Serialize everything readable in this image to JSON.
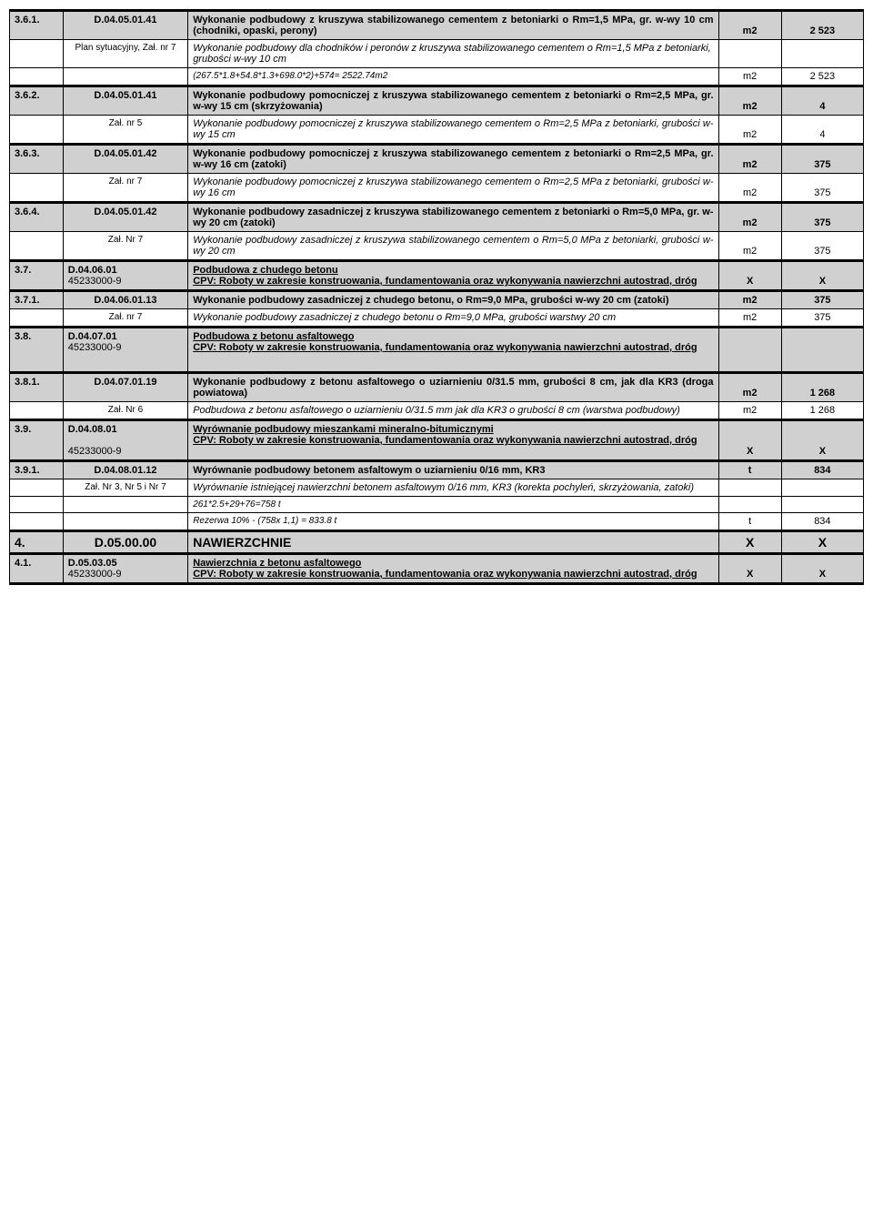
{
  "rows": [
    {
      "num": "3.6.1.",
      "code": "D.04.05.01.41",
      "desc": "Wykonanie podbudowy z kruszywa stabilizowanego cementem z betoniarki o Rm=1,5 MPa, gr. w-wy 10 cm (chodniki, opaski, perony)",
      "unit": "m2",
      "qty": "2 523",
      "gray": true,
      "bold": true,
      "thick": true,
      "justify": true,
      "uUnderline": true
    },
    {
      "num": "",
      "code": "Plan sytuacyjny, Zał. nr 7",
      "desc": "Wykonanie podbudowy dla chodników i peronów z kruszywa stabilizowanego cementem o Rm=1,5 MPa z betoniarki, grubości w-wy 10 cm",
      "unit": "",
      "qty": "",
      "gray": false,
      "italic": true,
      "codeSmall": true
    },
    {
      "num": "",
      "code": "",
      "desc": "(267.5*1.8+54.8*1.3+698.0*2)+574= 2522.74m2",
      "unit": "m2",
      "qty": "2 523",
      "gray": false,
      "italic": true,
      "small": true,
      "thickBottom": true
    },
    {
      "num": "3.6.2.",
      "code": "D.04.05.01.41",
      "desc": "Wykonanie podbudowy pomocniczej z kruszywa stabilizowanego cementem z betoniarki o Rm=2,5 MPa, gr. w-wy 15 cm (skrzyżowania)",
      "unit": "m2",
      "qty": "4",
      "gray": true,
      "bold": true,
      "justify": true,
      "uUnderline": true
    },
    {
      "num": "",
      "code": "Zał. nr 5",
      "desc": "Wykonanie podbudowy pomocniczej z kruszywa stabilizowanego cementem o Rm=2,5 MPa z betoniarki, grubości w-wy 15 cm",
      "unit": "m2",
      "qty": "4",
      "gray": false,
      "italic": true,
      "codeSmall": true,
      "justify": true,
      "thickBottom": true
    },
    {
      "num": "3.6.3.",
      "code": "D.04.05.01.42",
      "desc": "Wykonanie podbudowy pomocniczej z kruszywa stabilizowanego cementem z betoniarki o Rm=2,5 MPa, gr. w-wy 16 cm (zatoki)",
      "unit": "m2",
      "qty": "375",
      "gray": true,
      "bold": true,
      "justify": true,
      "uUnderline": true
    },
    {
      "num": "",
      "code": "Zał. nr 7",
      "desc": "Wykonanie podbudowy pomocniczej z kruszywa stabilizowanego cementem o Rm=2,5 MPa z betoniarki, grubości w-wy 16 cm",
      "unit": "m2",
      "qty": "375",
      "gray": false,
      "italic": true,
      "codeSmall": true,
      "justify": true,
      "thickBottom": true
    },
    {
      "num": "3.6.4.",
      "code": "D.04.05.01.42",
      "desc": "Wykonanie podbudowy zasadniczej z kruszywa stabilizowanego cementem z betoniarki o Rm=5,0 MPa, gr. w-wy 20 cm (zatoki)",
      "unit": "m2",
      "qty": "375",
      "gray": true,
      "bold": true,
      "justify": true,
      "uUnderline": true
    },
    {
      "num": "",
      "code": "Zał. Nr 7",
      "desc": "Wykonanie podbudowy zasadniczej z kruszywa stabilizowanego cementem o Rm=5,0 MPa z betoniarki, grubości w-wy 20 cm",
      "unit": "m2",
      "qty": "375",
      "gray": false,
      "italic": true,
      "codeSmall": true,
      "justify": true,
      "thickBottom": true
    },
    {
      "num": "3.7.",
      "code": "D.04.06.01\n45233000-9",
      "desc": "Podbudowa z chudego betonu\nCPV: Roboty w zakresie konstruowania, fundamentowania oraz wykonywania nawierzchni autostrad, dróg",
      "unit": "X",
      "qty": "X",
      "gray": true,
      "bold": true,
      "underline": true,
      "thickTop": true,
      "thickBottom": true,
      "multiCode": true
    },
    {
      "num": "3.7.1.",
      "code": "D.04.06.01.13",
      "desc": "Wykonanie podbudowy zasadniczej z chudego betonu, o Rm=9,0 MPa, grubości w-wy 20 cm (zatoki)",
      "unit": "m2",
      "qty": "375",
      "gray": true,
      "bold": true,
      "uUnderline": true
    },
    {
      "num": "",
      "code": "Zał. nr 7",
      "desc": "Wykonanie podbudowy zasadniczej z chudego betonu o Rm=9,0 MPa, grubości warstwy 20 cm",
      "unit": "m2",
      "qty": "375",
      "gray": false,
      "italic": true,
      "codeSmall": true,
      "thickBottom": true
    },
    {
      "num": "3.8.",
      "code": "D.04.07.01\n45233000-9",
      "desc": "Podbudowa z betonu asfaltowego\nCPV: Roboty w zakresie konstruowania, fundamentowania oraz wykonywania nawierzchni autostrad, dróg",
      "unit": "",
      "qty": "",
      "gray": true,
      "bold": true,
      "underline": true,
      "thickTop": true,
      "thickBottom": true,
      "multiCode": true,
      "extraPad": true
    },
    {
      "num": "3.8.1.",
      "code": "D.04.07.01.19",
      "desc": "Wykonanie podbudowy z betonu asfaltowego o uziarnieniu 0/31.5 mm,  grubości 8 cm, jak dla KR3 (droga powiatowa)",
      "unit": "m2",
      "qty": "1 268",
      "gray": true,
      "bold": true,
      "justify": true,
      "thickTop": true
    },
    {
      "num": "",
      "code": "Zał. Nr 6",
      "desc": "Podbudowa z betonu asfaltowego o uziarnieniu 0/31.5 mm jak dla KR3 o grubości 8 cm (warstwa podbudowy)",
      "unit": "m2",
      "qty": "1 268",
      "gray": false,
      "italic": true,
      "codeSmall": true,
      "thickBottom": true
    },
    {
      "num": "3.9.",
      "code": "D.04.08.01\n\n45233000-9",
      "desc": "Wyrównanie podbudowy mieszankami mineralno-bitumicznymi\nCPV: Roboty w zakresie konstruowania, fundamentowania oraz wykonywania nawierzchni autostrad, dróg",
      "unit": "X",
      "qty": "X",
      "gray": true,
      "bold": true,
      "underline": true,
      "thickTop": true,
      "thickBottom": true,
      "multiCode": true
    },
    {
      "num": "3.9.1.",
      "code": "D.04.08.01.12",
      "desc": "Wyrównanie podbudowy betonem asfaltowym o uziarnieniu 0/16 mm, KR3",
      "unit": "t",
      "qty": "834",
      "gray": true,
      "bold": true,
      "uUnderline": true
    },
    {
      "num": "",
      "code": "Zał. Nr 3, Nr 5 i Nr 7",
      "desc": "Wyrównanie istniejącej nawierzchni betonem asfaltowym 0/16 mm, KR3 (korekta pochyleń, skrzyżowania, zatoki)",
      "unit": "",
      "qty": "",
      "gray": false,
      "italic": true,
      "codeSmall": true
    },
    {
      "num": "",
      "code": "",
      "desc": "261*2.5+29+76=758 t",
      "unit": "",
      "qty": "",
      "gray": false,
      "italic": true,
      "small": true
    },
    {
      "num": "",
      "code": "",
      "desc": "Rezerwa 10% - (758x 1,1) = 833.8 t",
      "unit": "t",
      "qty": "834",
      "gray": false,
      "italic": true,
      "small": true,
      "thickBottom": true
    },
    {
      "num": "4.",
      "code": "D.05.00.00",
      "desc": "NAWIERZCHNIE",
      "unit": "X",
      "qty": "X",
      "gray": true,
      "bold": true,
      "thickTop": true,
      "thickBottom": true,
      "big": true
    },
    {
      "num": "4.1.",
      "code": "D.05.03.05\n45233000-9",
      "desc": "Nawierzchnia z betonu asfaltowego\nCPV: Roboty w zakresie konstruowania, fundamentowania oraz wykonywania nawierzchni autostrad, dróg",
      "unit": "X",
      "qty": "X",
      "gray": true,
      "bold": true,
      "underline": true,
      "thickTop": true,
      "thickBottom": true,
      "multiCode": true
    }
  ]
}
